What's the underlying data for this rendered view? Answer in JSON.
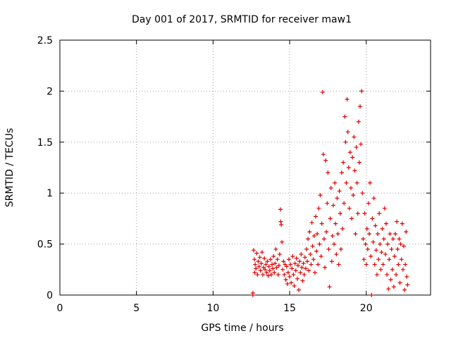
{
  "chart_data": {
    "type": "scatter",
    "title": "Day 001 of 2017, SRMTID for receiver maw1",
    "xlabel": "GPS time / hours",
    "ylabel": "SRMTID / TECUs",
    "xlim": [
      0,
      24.2
    ],
    "ylim": [
      0,
      2.5
    ],
    "xticks": [
      0,
      5,
      10,
      15,
      20
    ],
    "yticks": [
      0,
      0.5,
      1,
      1.5,
      2,
      2.5
    ],
    "xtick_labels": [
      "0",
      "5",
      "10",
      "15",
      "20"
    ],
    "ytick_labels": [
      "0",
      "0.5",
      "1",
      "1.5",
      "2",
      "2.5"
    ],
    "grid": true,
    "marker": "+",
    "series": [
      {
        "name": "SRMTID",
        "color": "#e00000",
        "points": [
          [
            12.6,
            0.0
          ],
          [
            12.6,
            0.02
          ],
          [
            12.65,
            0.44
          ],
          [
            12.7,
            0.35
          ],
          [
            12.72,
            0.22
          ],
          [
            12.75,
            0.3
          ],
          [
            12.8,
            0.26
          ],
          [
            12.85,
            0.41
          ],
          [
            12.9,
            0.2
          ],
          [
            12.95,
            0.33
          ],
          [
            13.0,
            0.28
          ],
          [
            13.05,
            0.37
          ],
          [
            13.1,
            0.24
          ],
          [
            13.15,
            0.31
          ],
          [
            13.2,
            0.42
          ],
          [
            13.25,
            0.2
          ],
          [
            13.3,
            0.27
          ],
          [
            13.35,
            0.36
          ],
          [
            13.4,
            0.25
          ],
          [
            13.45,
            0.3
          ],
          [
            13.5,
            0.22
          ],
          [
            13.55,
            0.33
          ],
          [
            13.6,
            0.19
          ],
          [
            13.65,
            0.28
          ],
          [
            13.7,
            0.24
          ],
          [
            13.75,
            0.35
          ],
          [
            13.8,
            0.2
          ],
          [
            13.85,
            0.3
          ],
          [
            13.9,
            0.26
          ],
          [
            13.95,
            0.38
          ],
          [
            14.0,
            0.22
          ],
          [
            14.05,
            0.31
          ],
          [
            14.1,
            0.45
          ],
          [
            14.15,
            0.27
          ],
          [
            14.2,
            0.35
          ],
          [
            14.25,
            0.2
          ],
          [
            14.3,
            0.29
          ],
          [
            14.35,
            0.4
          ],
          [
            14.4,
            0.84
          ],
          [
            14.42,
            0.72
          ],
          [
            14.45,
            0.69
          ],
          [
            14.5,
            0.52
          ],
          [
            14.55,
            0.25
          ],
          [
            14.6,
            0.33
          ],
          [
            14.65,
            0.2
          ],
          [
            14.7,
            0.3
          ],
          [
            14.75,
            0.15
          ],
          [
            14.8,
            0.28
          ],
          [
            14.85,
            0.11
          ],
          [
            14.9,
            0.22
          ],
          [
            14.95,
            0.35
          ],
          [
            15.0,
            0.18
          ],
          [
            15.05,
            0.3
          ],
          [
            15.1,
            0.12
          ],
          [
            15.15,
            0.26
          ],
          [
            15.2,
            0.38
          ],
          [
            15.25,
            0.2
          ],
          [
            15.3,
            0.09
          ],
          [
            15.35,
            0.31
          ],
          [
            15.4,
            0.24
          ],
          [
            15.45,
            0.36
          ],
          [
            15.5,
            0.16
          ],
          [
            15.55,
            0.29
          ],
          [
            15.6,
            0.05
          ],
          [
            15.65,
            0.33
          ],
          [
            15.7,
            0.22
          ],
          [
            15.75,
            0.4
          ],
          [
            15.8,
            0.27
          ],
          [
            15.85,
            0.14
          ],
          [
            15.9,
            0.31
          ],
          [
            15.95,
            0.2
          ],
          [
            16.0,
            0.37
          ],
          [
            16.05,
            0.26
          ],
          [
            16.1,
            0.45
          ],
          [
            16.15,
            0.33
          ],
          [
            16.2,
            0.55
          ],
          [
            16.25,
            0.24
          ],
          [
            16.3,
            0.62
          ],
          [
            16.35,
            0.4
          ],
          [
            16.4,
            0.3
          ],
          [
            16.45,
            0.71
          ],
          [
            16.5,
            0.48
          ],
          [
            16.55,
            0.35
          ],
          [
            16.6,
            0.58
          ],
          [
            16.65,
            0.22
          ],
          [
            16.7,
            0.77
          ],
          [
            16.75,
            0.43
          ],
          [
            16.8,
            0.6
          ],
          [
            16.85,
            0.3
          ],
          [
            16.9,
            0.85
          ],
          [
            16.95,
            0.5
          ],
          [
            17.0,
            0.98
          ],
          [
            17.05,
            0.38
          ],
          [
            17.1,
            0.7
          ],
          [
            17.15,
            1.99
          ],
          [
            17.2,
            1.38
          ],
          [
            17.25,
            0.55
          ],
          [
            17.3,
            0.27
          ],
          [
            17.35,
            1.32
          ],
          [
            17.4,
            0.62
          ],
          [
            17.45,
            0.9
          ],
          [
            17.5,
            1.2
          ],
          [
            17.55,
            0.45
          ],
          [
            17.6,
            0.08
          ],
          [
            17.65,
            0.75
          ],
          [
            17.7,
            1.05
          ],
          [
            17.75,
            0.33
          ],
          [
            17.8,
            0.58
          ],
          [
            17.85,
            0.88
          ],
          [
            17.9,
            0.5
          ],
          [
            17.95,
            1.1
          ],
          [
            18.0,
            0.7
          ],
          [
            18.05,
            0.4
          ],
          [
            18.1,
            0.95
          ],
          [
            18.15,
            0.6
          ],
          [
            18.2,
            0.3
          ],
          [
            18.25,
            1.02
          ],
          [
            18.3,
            0.8
          ],
          [
            18.35,
            0.45
          ],
          [
            18.4,
            1.2
          ],
          [
            18.45,
            0.65
          ],
          [
            18.5,
            1.3
          ],
          [
            18.55,
            0.9
          ],
          [
            18.6,
            1.75
          ],
          [
            18.65,
            1.5
          ],
          [
            18.7,
            1.1
          ],
          [
            18.75,
            1.92
          ],
          [
            18.8,
            1.6
          ],
          [
            18.85,
            1.25
          ],
          [
            18.9,
            0.85
          ],
          [
            18.95,
            1.4
          ],
          [
            19.0,
            1.05
          ],
          [
            19.05,
            0.75
          ],
          [
            19.1,
            1.35
          ],
          [
            19.15,
            0.98
          ],
          [
            19.2,
            1.55
          ],
          [
            19.25,
            1.22
          ],
          [
            19.3,
            0.6
          ],
          [
            19.35,
            1.45
          ],
          [
            19.4,
            1.1
          ],
          [
            19.45,
            0.8
          ],
          [
            19.5,
            1.7
          ],
          [
            19.55,
            1.3
          ],
          [
            19.6,
            1.85
          ],
          [
            19.65,
            1.48
          ],
          [
            19.7,
            2.0
          ],
          [
            19.75,
            1.0
          ],
          [
            19.8,
            0.55
          ],
          [
            19.85,
            0.35
          ],
          [
            19.9,
            0.8
          ],
          [
            19.95,
            0.5
          ],
          [
            20.0,
            0.3
          ],
          [
            20.05,
            0.65
          ],
          [
            20.1,
            0.45
          ],
          [
            20.15,
            0.9
          ],
          [
            20.2,
            0.6
          ],
          [
            20.25,
            1.1
          ],
          [
            20.3,
            0.38
          ],
          [
            20.35,
            0.0
          ],
          [
            20.4,
            0.75
          ],
          [
            20.45,
            0.52
          ],
          [
            20.5,
            0.95
          ],
          [
            20.55,
            0.3
          ],
          [
            20.6,
            0.68
          ],
          [
            20.65,
            0.44
          ],
          [
            20.7,
            0.2
          ],
          [
            20.75,
            0.6
          ],
          [
            20.8,
            0.35
          ],
          [
            20.85,
            0.8
          ],
          [
            20.9,
            0.5
          ],
          [
            20.95,
            0.25
          ],
          [
            21.0,
            0.42
          ],
          [
            21.05,
            0.65
          ],
          [
            21.1,
            0.3
          ],
          [
            21.15,
            0.55
          ],
          [
            21.2,
            0.85
          ],
          [
            21.25,
            0.4
          ],
          [
            21.3,
            0.7
          ],
          [
            21.35,
            0.2
          ],
          [
            21.4,
            0.5
          ],
          [
            21.45,
            0.06
          ],
          [
            21.5,
            0.35
          ],
          [
            21.55,
            0.6
          ],
          [
            21.6,
            0.15
          ],
          [
            21.65,
            0.45
          ],
          [
            21.7,
            0.25
          ],
          [
            21.75,
            0.55
          ],
          [
            21.8,
            0.08
          ],
          [
            21.85,
            0.38
          ],
          [
            21.9,
            0.6
          ],
          [
            21.95,
            0.2
          ],
          [
            22.0,
            0.72
          ],
          [
            22.05,
            0.45
          ],
          [
            22.1,
            0.3
          ],
          [
            22.15,
            0.55
          ],
          [
            22.2,
            0.12
          ],
          [
            22.25,
            0.5
          ],
          [
            22.3,
            0.35
          ],
          [
            22.35,
            0.7
          ],
          [
            22.4,
            0.25
          ],
          [
            22.45,
            0.48
          ],
          [
            22.5,
            0.05
          ],
          [
            22.55,
            0.3
          ],
          [
            22.6,
            0.62
          ],
          [
            22.65,
            0.18
          ],
          [
            22.7,
            0.1
          ]
        ]
      }
    ]
  }
}
